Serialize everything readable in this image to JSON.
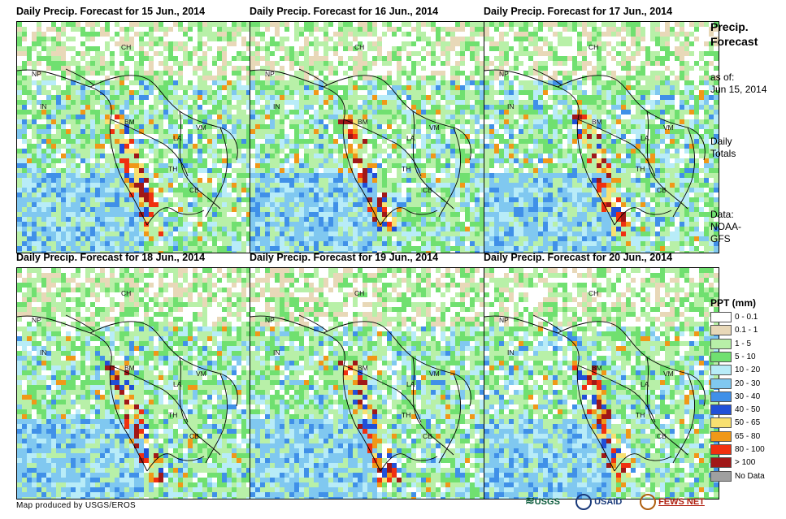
{
  "panels": [
    {
      "title": "Daily Precip. Forecast for 15 Jun., 2014",
      "seed": 11
    },
    {
      "title": "Daily Precip. Forecast for 16 Jun., 2014",
      "seed": 23
    },
    {
      "title": "Daily Precip. Forecast for 17 Jun., 2014",
      "seed": 37
    },
    {
      "title": "Daily Precip. Forecast for 18 Jun., 2014",
      "seed": 41
    },
    {
      "title": "Daily Precip. Forecast for 19 Jun., 2014",
      "seed": 53
    },
    {
      "title": "Daily Precip. Forecast for 20 Jun., 2014",
      "seed": 67
    }
  ],
  "country_labels": [
    "CH",
    "NP",
    "IN",
    "BM",
    "LA",
    "VM",
    "TH",
    "CB"
  ],
  "sidebar": {
    "title_line1": "Precip.",
    "title_line2": "Forecast",
    "asof_line1": "as of:",
    "asof_line2": "Jun 15, 2014",
    "totals_line1": "Daily",
    "totals_line2": "Totals",
    "data_line1": "Data:",
    "data_line2": "NOAA-",
    "data_line3": "GFS"
  },
  "legend": {
    "title": "PPT (mm)",
    "items": [
      {
        "label": "0 - 0.1",
        "color": "#ffffff"
      },
      {
        "label": "0.1 - 1",
        "color": "#e8d8b8"
      },
      {
        "label": "1 - 5",
        "color": "#b8f0a8"
      },
      {
        "label": "5 - 10",
        "color": "#70e070"
      },
      {
        "label": "10 - 20",
        "color": "#b8ecf8"
      },
      {
        "label": "20 - 30",
        "color": "#80c8f0"
      },
      {
        "label": "30 - 40",
        "color": "#4090e8"
      },
      {
        "label": "40 - 50",
        "color": "#2050d8"
      },
      {
        "label": "50 - 65",
        "color": "#f8e070"
      },
      {
        "label": "65 - 80",
        "color": "#f09818"
      },
      {
        "label": "80 - 100",
        "color": "#f03010"
      },
      {
        "label": "> 100",
        "color": "#a01818"
      },
      {
        "label": "No Data",
        "color": "#a0a0a0"
      }
    ]
  },
  "credit": "Map produced by USGS/EROS",
  "logos": {
    "usgs": "USGS",
    "usaid": "USAID",
    "fews": "FEWS NET"
  }
}
